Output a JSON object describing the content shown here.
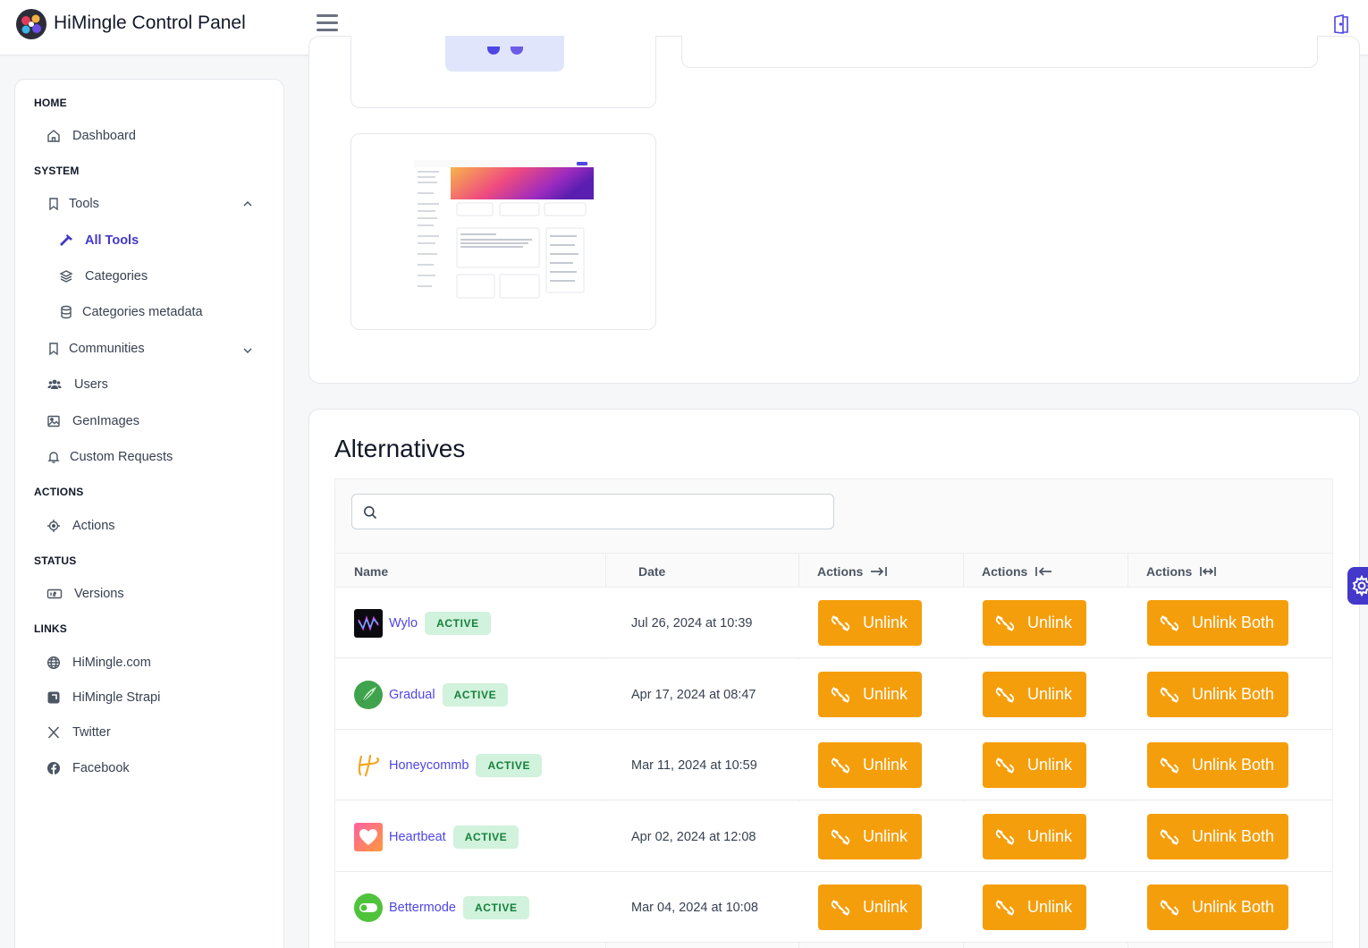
{
  "app": {
    "title": "HiMingle Control Panel"
  },
  "sidebar": {
    "sections": {
      "home": "HOME",
      "system": "SYSTEM",
      "actions": "ACTIONS",
      "status": "STATUS",
      "links": "LINKS"
    },
    "items": {
      "dashboard": "Dashboard",
      "tools": "Tools",
      "all_tools": "All Tools",
      "categories": "Categories",
      "categories_metadata": "Categories metadata",
      "communities": "Communities",
      "users": "Users",
      "genimages": "GenImages",
      "custom_requests": "Custom Requests",
      "actions": "Actions",
      "versions": "Versions",
      "himingle_com": "HiMingle.com",
      "himingle_strapi": "HiMingle Strapi",
      "twitter": "Twitter",
      "facebook": "Facebook"
    }
  },
  "alternatives": {
    "title": "Alternatives",
    "search": {
      "placeholder": "",
      "value": ""
    },
    "columns": {
      "name": "Name",
      "date": "Date",
      "actions1": "Actions",
      "actions2": "Actions",
      "actions3": "Actions"
    },
    "rows": [
      {
        "name": "Wylo",
        "status": "ACTIVE",
        "date": "Jul 26, 2024 at 10:39",
        "unlink1": "Unlink",
        "unlink2": "Unlink",
        "unlink_both": "Unlink Both"
      },
      {
        "name": "Gradual",
        "status": "ACTIVE",
        "date": "Apr 17, 2024 at 08:47",
        "unlink1": "Unlink",
        "unlink2": "Unlink",
        "unlink_both": "Unlink Both"
      },
      {
        "name": "Honeycommb",
        "status": "ACTIVE",
        "date": "Mar 11, 2024 at 10:59",
        "unlink1": "Unlink",
        "unlink2": "Unlink",
        "unlink_both": "Unlink Both"
      },
      {
        "name": "Heartbeat",
        "status": "ACTIVE",
        "date": "Apr 02, 2024 at 12:08",
        "unlink1": "Unlink",
        "unlink2": "Unlink",
        "unlink_both": "Unlink Both"
      },
      {
        "name": "Bettermode",
        "status": "ACTIVE",
        "date": "Mar 04, 2024 at 10:08",
        "unlink1": "Unlink",
        "unlink2": "Unlink",
        "unlink_both": "Unlink Both"
      }
    ]
  },
  "colors": {
    "accent": "#4f46e5",
    "button": "#f59e0b",
    "badge_bg": "#d1f2dc",
    "badge_text": "#15803d"
  }
}
